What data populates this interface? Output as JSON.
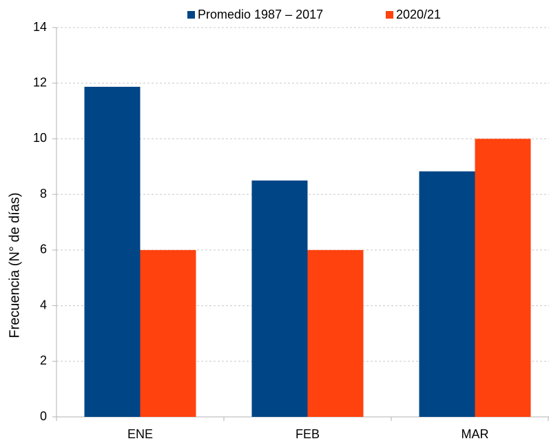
{
  "chart_data": {
    "type": "bar",
    "y_label": "Frecuencia (N° de días)",
    "categories": [
      "ENE",
      "FEB",
      "MAR"
    ],
    "series": [
      {
        "name": "Promedio 1987 – 2017",
        "color": "#004586",
        "values": [
          11.87,
          8.5,
          8.83
        ]
      },
      {
        "name": "2020/21",
        "color": "#ff420e",
        "values": [
          6,
          6,
          10
        ]
      }
    ],
    "ylim": [
      0,
      14
    ],
    "yticks": [
      0,
      2,
      4,
      6,
      8,
      10,
      12,
      14
    ],
    "grid": true,
    "legend": "top"
  }
}
